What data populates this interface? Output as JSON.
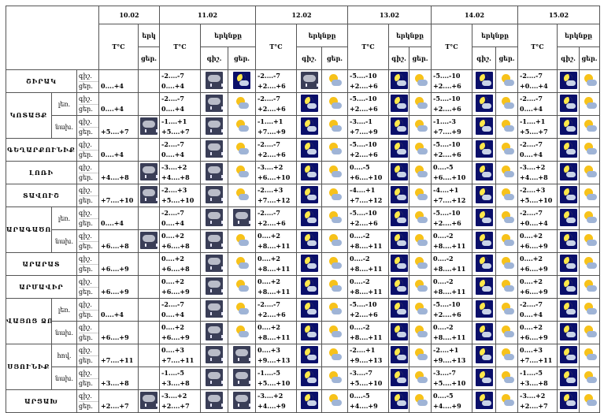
{
  "dates": [
    "10.02",
    "11.02",
    "12.02",
    "13.02",
    "14.02",
    "15.02"
  ],
  "temp_label": "T°C",
  "sky_label": "երկնքը",
  "sky_label_short": "երկ",
  "day_label": "ցեր.",
  "night_label": "գիշ.",
  "rows": [
    {
      "region": "ՇԻՐԱԿ",
      "sub": "",
      "n": [
        "",
        "-2....-7",
        "-2....-7",
        "-5....-10",
        "-5....-10",
        "-2....-7"
      ],
      "d": [
        "0....+4",
        "0....+4",
        "+2....+6",
        "+2....+6",
        "+2....+6",
        "+0....+4"
      ],
      "icons": [
        "",
        "dark",
        "night",
        "dark",
        "day",
        "night",
        "day",
        "night",
        "day",
        "night",
        "day",
        "dark",
        "dark"
      ]
    },
    {
      "region": "ԿՈՏԱՅՔ",
      "sub": "լեռ.",
      "n": [
        "",
        "-2....-7",
        "-2....-7",
        "-5....-10",
        "-5....-10",
        "-2....-7"
      ],
      "d": [
        "0....+4",
        "0....+4",
        "+2....+6",
        "+2....+6",
        "+2....+6",
        "0....+4"
      ],
      "icons": [
        "",
        "dark",
        "day",
        "night",
        "day",
        "night",
        "day",
        "night",
        "day",
        "night",
        "day",
        "dark",
        "dark"
      ]
    },
    {
      "region": "",
      "sub": "նախ.",
      "n": [
        "",
        "-1....+1",
        "-1....+1",
        "-3....-1",
        "-1....-3",
        "-1....+1"
      ],
      "d": [
        "+5....+7",
        "+5....+7",
        "+7....+9",
        "+7....+9",
        "+7....+9",
        "+5....+7"
      ],
      "icons": [
        "dark",
        "dark",
        "day",
        "night",
        "day",
        "night",
        "day",
        "night",
        "day",
        "night",
        "day",
        "dark",
        "dark"
      ]
    },
    {
      "region": "ԳԵՂԱՐՔՈՒՆԻՔ",
      "sub": "",
      "n": [
        "",
        "-2....-7",
        "-2....-7",
        "-5....-10",
        "-5....-10",
        "-2....-7"
      ],
      "d": [
        "0....+4",
        "0....+4",
        "+2....+6",
        "+2....+6",
        "+2....+6",
        "0....+4"
      ],
      "icons": [
        "",
        "dark",
        "day",
        "night",
        "day",
        "night",
        "day",
        "night",
        "day",
        "night",
        "day",
        "dark",
        "dark"
      ]
    },
    {
      "region": "ԼՈՌԻ",
      "sub": "",
      "n": [
        "",
        "-3....+2",
        "-3....+2",
        "0....-5",
        "0....-5",
        "-3....+2"
      ],
      "d": [
        "+4....+8",
        "+4....+8",
        "+6....+10",
        "+6....+10",
        "+6....+10",
        "+4....+8"
      ],
      "icons": [
        "dark",
        "dark",
        "day",
        "night",
        "day",
        "night",
        "day",
        "night",
        "day",
        "night",
        "day",
        "dark",
        "dark"
      ]
    },
    {
      "region": "ՏԱՎՈՒՇ",
      "sub": "",
      "n": [
        "",
        "-2....+3",
        "-2....+3",
        "-4....+1",
        "-4....+1",
        "-2....+3"
      ],
      "d": [
        "+7....+10",
        "+5....+10",
        "+7....+12",
        "+7....+12",
        "+7....+12",
        "+5....+10"
      ],
      "icons": [
        "dark",
        "dark",
        "day",
        "night",
        "day",
        "night",
        "day",
        "night",
        "day",
        "night",
        "day",
        "dark",
        "dark"
      ]
    },
    {
      "region": "ԱՐԱԳԱԾՈՏՆ",
      "sub": "լեռ.",
      "n": [
        "",
        "-2....-7",
        "-2....-7",
        "-5....-10",
        "-5....-10",
        "-2....-7"
      ],
      "d": [
        "0....+4",
        "0....+4",
        "+2....+6",
        "+2....+6",
        "+2....+6",
        "+0....+4"
      ],
      "icons": [
        "",
        "dark",
        "dark",
        "night",
        "day",
        "night",
        "day",
        "night",
        "day",
        "night",
        "day",
        "dark",
        "dark"
      ]
    },
    {
      "region": "",
      "sub": "նախ.",
      "n": [
        "",
        "0....+2",
        "0....+2",
        "0....-2",
        "0....-2",
        "0....+2"
      ],
      "d": [
        "+6....+8",
        "+6....+8",
        "+8....+11",
        "+8....+11",
        "+8....+11",
        "+6....+9"
      ],
      "icons": [
        "dark",
        "dark",
        "day",
        "night",
        "day",
        "night",
        "day",
        "night",
        "day",
        "night",
        "day",
        "dark",
        "dark"
      ]
    },
    {
      "region": "ԱՐԱՐԱՏ",
      "sub": "",
      "n": [
        "",
        "0....+2",
        "0....+2",
        "0....-2",
        "0....-2",
        "0....+2"
      ],
      "d": [
        "+6....+9",
        "+6....+8",
        "+8....+11",
        "+8....+11",
        "+8....+11",
        "+6....+9"
      ],
      "icons": [
        "",
        "dark",
        "day",
        "night",
        "day",
        "night",
        "day",
        "night",
        "day",
        "night",
        "day",
        "dark",
        "dark"
      ]
    },
    {
      "region": "ԱՐՄԱՎԻՐ",
      "sub": "",
      "n": [
        "",
        "0....+2",
        "0....+2",
        "0....-2",
        "0....-2",
        "0....+2"
      ],
      "d": [
        "+6....+9",
        "+6....+9",
        "+8....+11",
        "+8....+11",
        "+8....+11",
        "+6....+9"
      ],
      "icons": [
        "",
        "dark",
        "day",
        "night",
        "day",
        "night",
        "day",
        "night",
        "day",
        "night",
        "day",
        "dark",
        "dark"
      ]
    },
    {
      "region": "ՎԱՅՈՑ ՁՈՐ",
      "sub": "լեռ.",
      "n": [
        "",
        "-2....-7",
        "-2....-7",
        "-5....-10",
        "-5....-10",
        "-2....-7"
      ],
      "d": [
        "0....+4",
        "0....+4",
        "+2....+6",
        "+2....+6",
        "+2....+6",
        "0....+4"
      ],
      "icons": [
        "",
        "dark",
        "day",
        "night",
        "day",
        "night",
        "day",
        "night",
        "day",
        "night",
        "day",
        "dark",
        "dark"
      ]
    },
    {
      "region": "",
      "sub": "նախ.",
      "n": [
        "",
        "0....+2",
        "0....+2",
        "0....-2",
        "0....-2",
        "0....+2"
      ],
      "d": [
        "+6....+9",
        "+6....+9",
        "+8....+11",
        "+8....+11",
        "+8....+11",
        "+6....+9"
      ],
      "icons": [
        "",
        "dark",
        "day",
        "night",
        "day",
        "night",
        "day",
        "night",
        "day",
        "night",
        "day",
        "dark",
        "dark"
      ]
    },
    {
      "region": "ՍՅՈՒՆԻՔ",
      "sub": "հով.",
      "n": [
        "",
        "0....+3",
        "0....+3",
        "-2....+1",
        "-2....+1",
        "0....+3"
      ],
      "d": [
        "+7....+11",
        "+7....+11",
        "+9....+13",
        "+9....+13",
        "+9....+13",
        "+7....+11"
      ],
      "icons": [
        "",
        "dark",
        "dark",
        "night",
        "day",
        "night",
        "day",
        "night",
        "day",
        "night",
        "day",
        "dark",
        "dark"
      ]
    },
    {
      "region": "",
      "sub": "նախ.",
      "n": [
        "",
        "-1....-5",
        "-1....-5",
        "-3....-7",
        "-3....-7",
        "-1....-5"
      ],
      "d": [
        "+3....+8",
        "+3....+8",
        "+5....+10",
        "+5....+10",
        "+5....+10",
        "+3....+8"
      ],
      "icons": [
        "",
        "dark",
        "dark",
        "night",
        "day",
        "night",
        "day",
        "night",
        "day",
        "night",
        "day",
        "dark",
        "dark"
      ]
    },
    {
      "region": "ԱՐՑԱԽ",
      "sub": "",
      "n": [
        "",
        "-3....+2",
        "-3....+2",
        "0....-5",
        "0....-5",
        "-3....+2"
      ],
      "d": [
        "+2....+7",
        "+2....+7",
        "+4....+9",
        "+4....+9",
        "+4....+9",
        "+2....+7"
      ],
      "icons": [
        "dark",
        "dark",
        "dark",
        "night",
        "day",
        "night",
        "day",
        "night",
        "day",
        "night",
        "day",
        "dark",
        "dark"
      ]
    }
  ]
}
